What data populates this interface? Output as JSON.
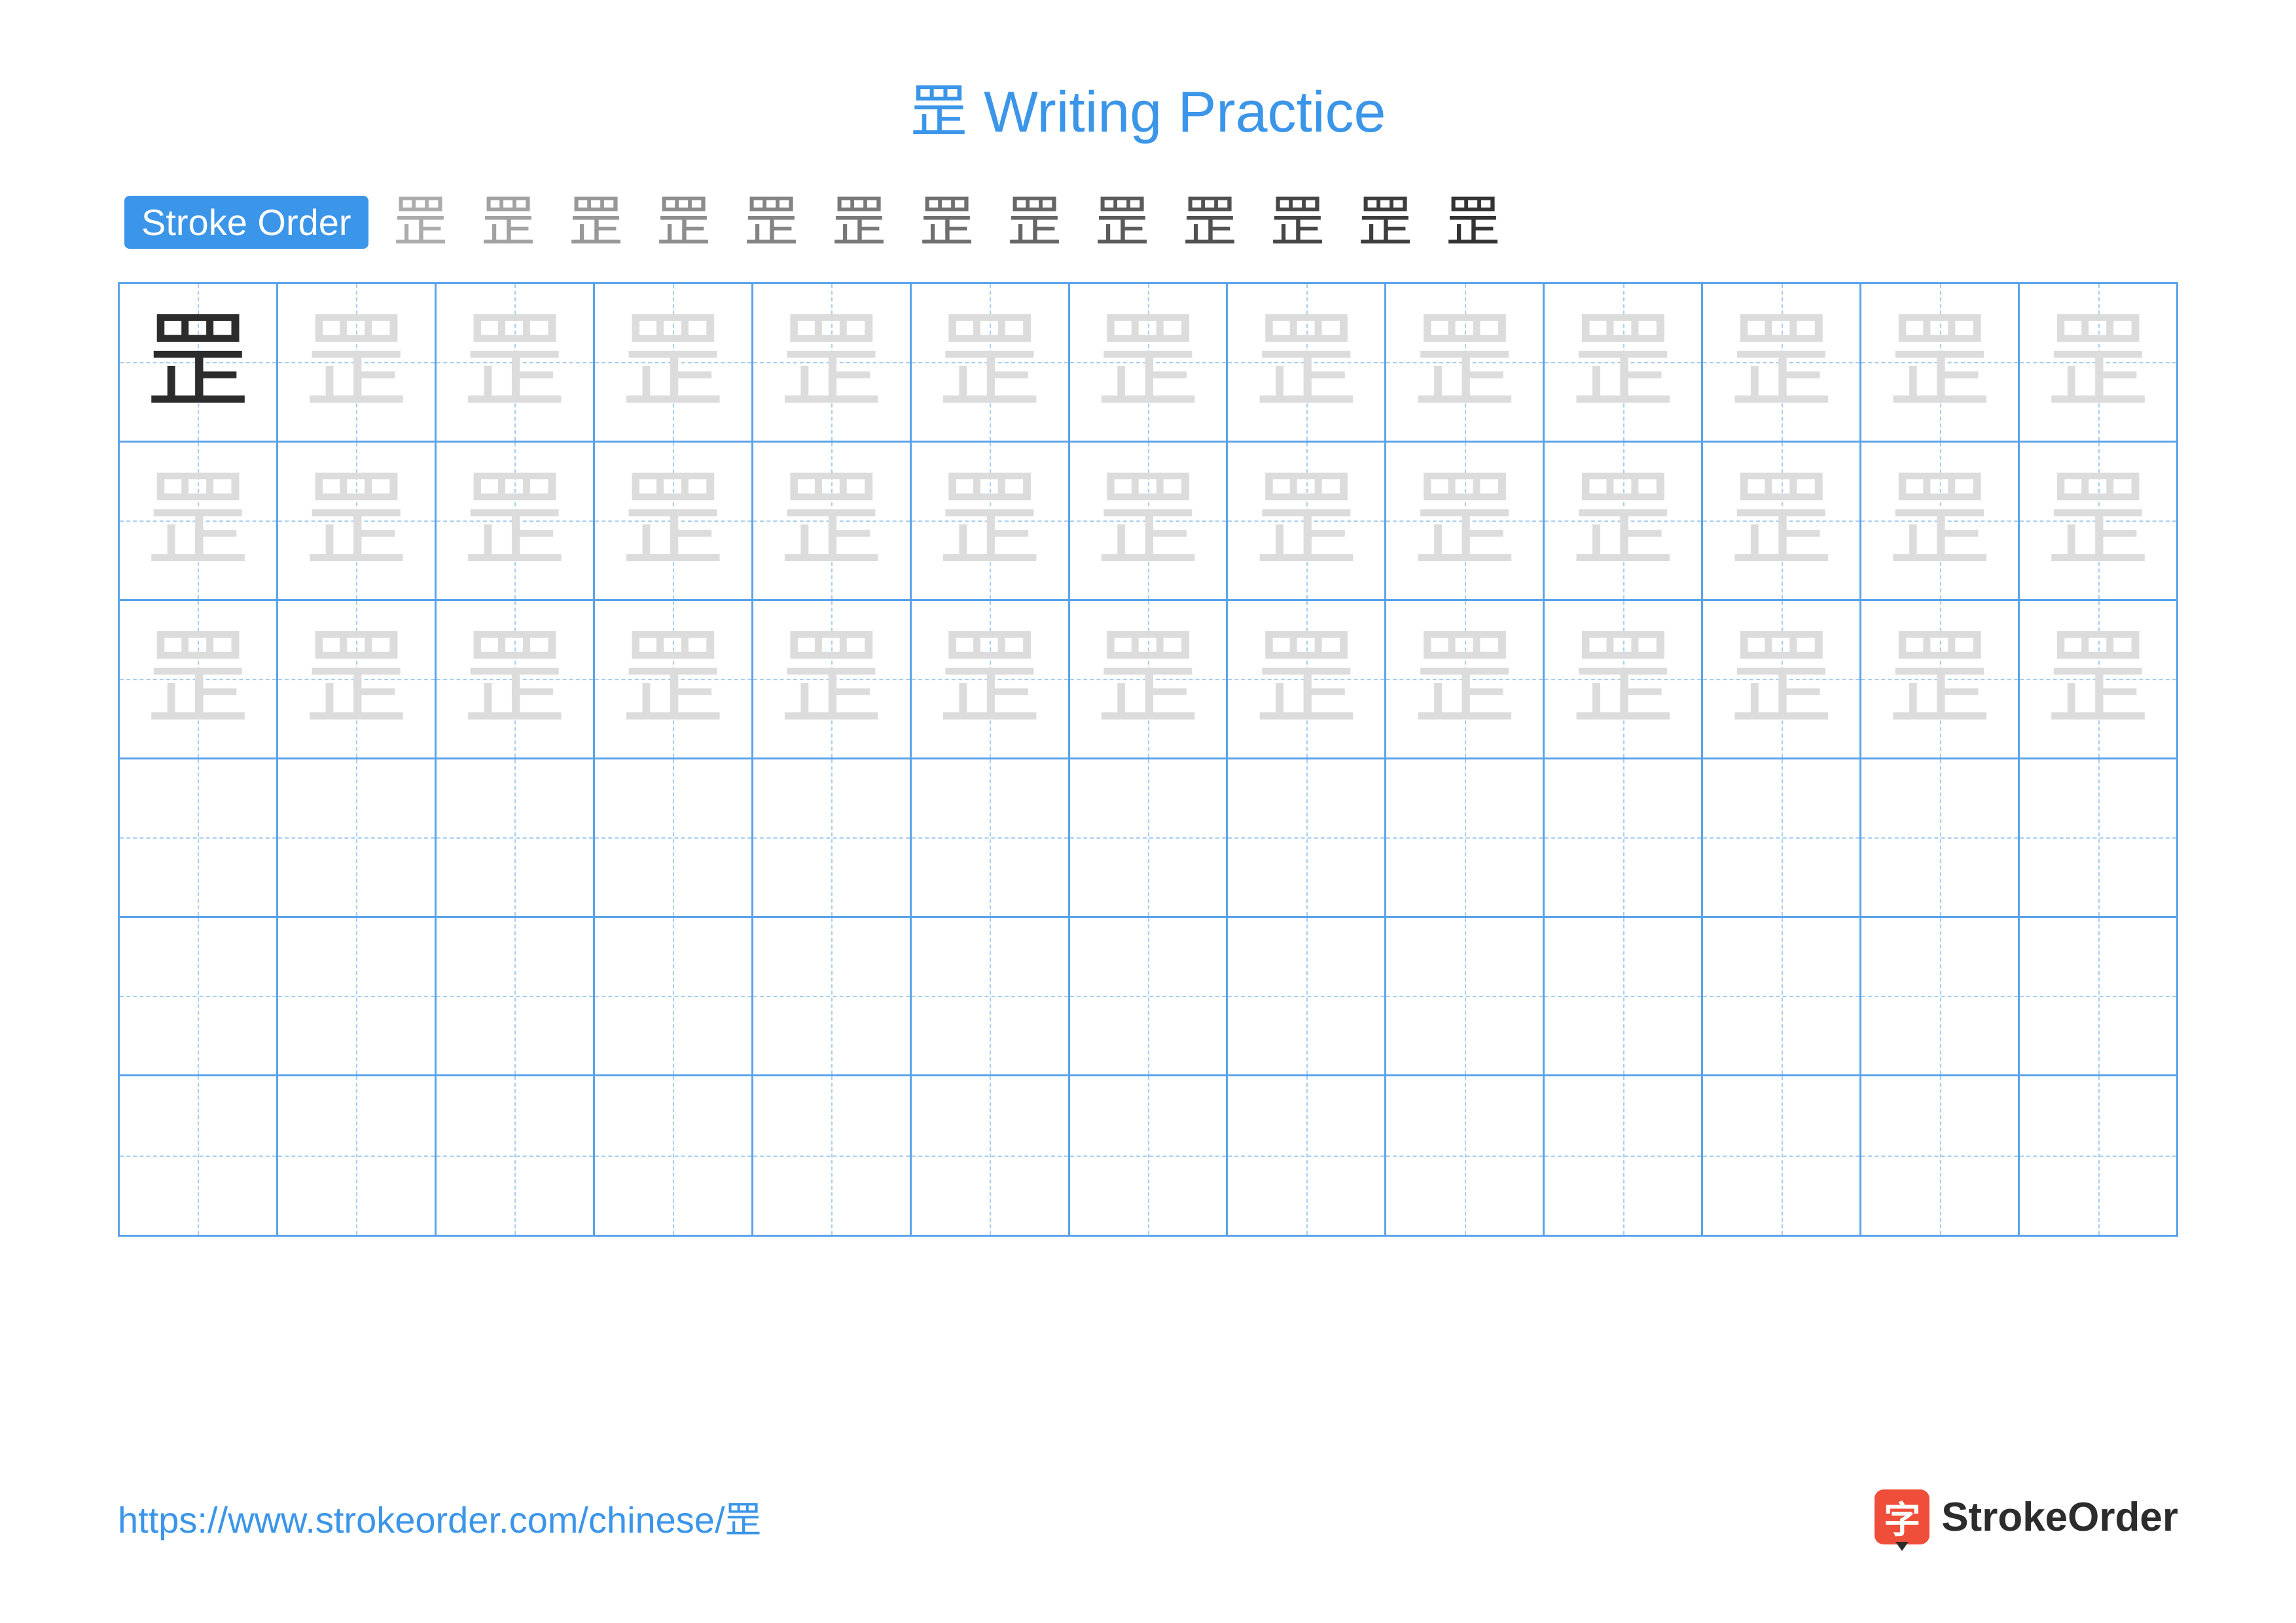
{
  "title": "罡 Writing Practice",
  "stroke_order_label": "Stroke Order",
  "character": "罡",
  "stroke_steps_count": 13,
  "grid": {
    "rows": 6,
    "cols": 13,
    "trace_rows": 3,
    "blank_rows": 3,
    "first_cell_dark": true
  },
  "colors": {
    "accent": "#3b95e8",
    "grid_border": "#5aa3ea",
    "guide_dash": "#a7ceef",
    "char_dark": "#2c2c2c",
    "char_light": "#dcdcdc",
    "logo_bg": "#ef4e3a"
  },
  "footer": {
    "url": "https://www.strokeorder.com/chinese/罡",
    "logo_char": "字",
    "logo_text": "StrokeOrder"
  }
}
